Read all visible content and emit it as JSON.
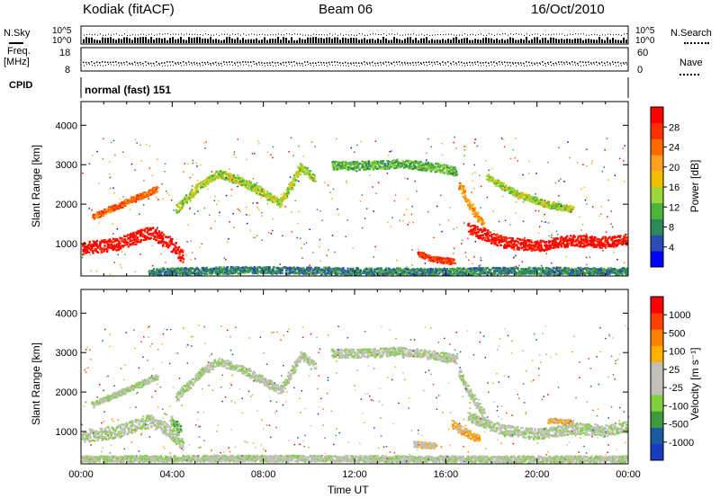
{
  "header": {
    "station": "Kodiak (fitACF)",
    "beam": "Beam 06",
    "date": "16/Oct/2010"
  },
  "params": {
    "nsky_label": "N.Sky",
    "nsearch_label": "N.Search",
    "nsky_ticks": [
      "10^5",
      "10^0"
    ],
    "nsearch_ticks": [
      "10^5",
      "10^0"
    ],
    "freq_label_1": "Freq.",
    "freq_label_2": "[MHz]",
    "freq_ticks": [
      "18",
      "8"
    ],
    "nave_label": "Nave",
    "nave_ticks": [
      "60",
      "0"
    ],
    "cpid_label": "CPID",
    "cpid_value": "normal (fast) 151"
  },
  "colors": {
    "power": [
      "#0000ff",
      "#2c4bb4",
      "#2c8a5a",
      "#4db33b",
      "#9dd53a",
      "#f0c000",
      "#ffa020",
      "#ff6a00",
      "#ff3000",
      "#ff0000"
    ],
    "velocity": [
      "#1a3cc0",
      "#1a5aa0",
      "#3d9a3d",
      "#80d040",
      "#c0c0b8",
      "#c0c0b8",
      "#ffb000",
      "#ff8000",
      "#ff4000",
      "#ff0000"
    ]
  },
  "chart_data": [
    {
      "type": "heatmap",
      "quantity": "power",
      "xlabel": "",
      "ylabel": "Slant Range [km]",
      "xlim": [
        0,
        24
      ],
      "ylim": [
        180,
        4600
      ],
      "yticks": [
        1000,
        2000,
        3000,
        4000
      ],
      "colorbar_label": "Power [dB]",
      "colorbar_ticks": [
        "28",
        "24",
        "20",
        "16",
        "12",
        "8",
        "4"
      ],
      "features": [
        {
          "t": [
            0.0,
            1.5,
            3.0,
            3.8,
            4.4
          ],
          "r": [
            900,
            1000,
            1300,
            1050,
            700
          ],
          "width": 320,
          "level": 9
        },
        {
          "t": [
            0.5,
            1.5,
            2.7,
            3.3
          ],
          "r": [
            1700,
            1950,
            2250,
            2400
          ],
          "width": 140,
          "level": 7
        },
        {
          "t": [
            4.2,
            5.2,
            6.0,
            7.0,
            8.0,
            8.7,
            9.2,
            9.6,
            10.2
          ],
          "r": [
            1900,
            2500,
            2800,
            2600,
            2300,
            2050,
            2500,
            2950,
            2700
          ],
          "width": 200,
          "level": 4
        },
        {
          "t": [
            11.0,
            12.5,
            14.0,
            15.5,
            16.4
          ],
          "r": [
            3000,
            3000,
            3050,
            2950,
            2850
          ],
          "width": 220,
          "level": 3
        },
        {
          "t": [
            16.6,
            17.0,
            17.6
          ],
          "r": [
            2500,
            2000,
            1500
          ],
          "width": 200,
          "level": 6
        },
        {
          "t": [
            17.0,
            18.5,
            20.0,
            21.5,
            23.0,
            24.0
          ],
          "r": [
            1400,
            1050,
            950,
            1100,
            1050,
            1150
          ],
          "width": 280,
          "level": 9
        },
        {
          "t": [
            14.8,
            15.5,
            16.3
          ],
          "r": [
            750,
            620,
            560
          ],
          "width": 150,
          "level": 8
        },
        {
          "t": [
            17.8,
            19.0,
            20.5,
            21.5
          ],
          "r": [
            2700,
            2300,
            2000,
            1900
          ],
          "width": 160,
          "level": 4
        },
        {
          "t": [
            3.0,
            7.0,
            11.0,
            15.0,
            19.0,
            24.0
          ],
          "r": [
            300,
            350,
            330,
            300,
            330,
            320
          ],
          "width": 180,
          "level": 2
        }
      ]
    },
    {
      "type": "heatmap",
      "quantity": "velocity",
      "xlabel": "Time UT",
      "ylabel": "Slant Range [km]",
      "xlim": [
        0,
        24
      ],
      "ylim": [
        180,
        4600
      ],
      "xticks": [
        "00:00",
        "04:00",
        "08:00",
        "12:00",
        "16:00",
        "20:00",
        "00:00"
      ],
      "yticks": [
        1000,
        2000,
        3000,
        4000
      ],
      "colorbar_label": "Velocity [m s⁻¹]",
      "colorbar_ticks": [
        "1000",
        "500",
        "100",
        "25",
        "-25",
        "-100",
        "-500",
        "-1000"
      ],
      "features": [
        {
          "t": [
            0.0,
            1.5,
            3.0,
            3.8,
            4.4
          ],
          "r": [
            900,
            1000,
            1300,
            1050,
            700
          ],
          "width": 320,
          "level": 4
        },
        {
          "t": [
            0.5,
            1.5,
            2.7,
            3.3
          ],
          "r": [
            1700,
            1950,
            2250,
            2400
          ],
          "width": 140,
          "level": 4
        },
        {
          "t": [
            4.2,
            5.2,
            6.0,
            7.0,
            8.0,
            8.7,
            9.2,
            9.6,
            10.2
          ],
          "r": [
            1900,
            2500,
            2800,
            2600,
            2300,
            2050,
            2500,
            2950,
            2700
          ],
          "width": 200,
          "level": 4
        },
        {
          "t": [
            11.0,
            12.5,
            14.0,
            15.5,
            16.4
          ],
          "r": [
            3000,
            3000,
            3050,
            2950,
            2850
          ],
          "width": 220,
          "level": 4
        },
        {
          "t": [
            16.6,
            17.0,
            17.6
          ],
          "r": [
            2500,
            2000,
            1500
          ],
          "width": 200,
          "level": 4
        },
        {
          "t": [
            17.0,
            18.5,
            20.0,
            21.5,
            23.0,
            24.0
          ],
          "r": [
            1400,
            1050,
            950,
            1100,
            1050,
            1150
          ],
          "width": 280,
          "level": 4
        },
        {
          "t": [
            3.9,
            4.3
          ],
          "r": [
            1300,
            1100
          ],
          "width": 200,
          "level": 3
        },
        {
          "t": [
            16.3,
            16.8,
            17.4
          ],
          "r": [
            1200,
            1000,
            850
          ],
          "width": 220,
          "level": 6
        },
        {
          "t": [
            14.6,
            15.5
          ],
          "r": [
            700,
            650
          ],
          "width": 150,
          "level": 5
        },
        {
          "t": [
            20.5,
            21.5
          ],
          "r": [
            1300,
            1250
          ],
          "width": 120,
          "level": 6
        },
        {
          "t": [
            0.0,
            6.0,
            12.0,
            18.0,
            24.0
          ],
          "r": [
            320,
            340,
            330,
            320,
            320
          ],
          "width": 160,
          "level": 4
        }
      ]
    }
  ]
}
